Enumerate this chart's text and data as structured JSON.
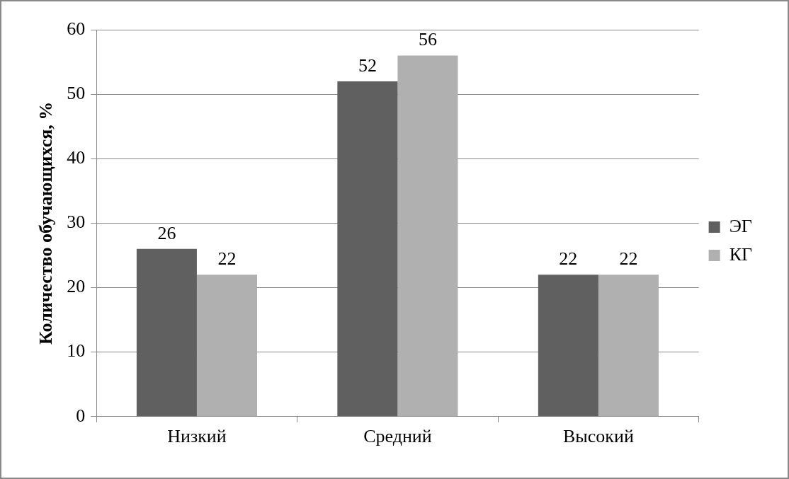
{
  "chart_data": {
    "type": "bar",
    "ylabel": "Количество обучающихся, %",
    "categories": [
      "Низкий",
      "Средний",
      "Высокий"
    ],
    "series": [
      {
        "name": "ЭГ",
        "color": "#606060",
        "values": [
          26,
          52,
          22
        ]
      },
      {
        "name": "КГ",
        "color": "#b0b0b0",
        "values": [
          22,
          56,
          22
        ]
      }
    ],
    "ylim": [
      0,
      60
    ],
    "yticks": [
      0,
      10,
      20,
      30,
      40,
      50,
      60
    ],
    "grid": "y",
    "legend": "right",
    "data_labels": true
  }
}
